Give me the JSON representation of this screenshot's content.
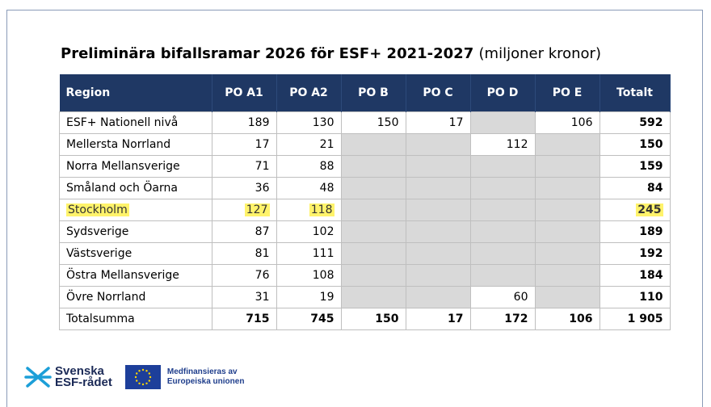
{
  "title": {
    "main": "Preliminära bifallsramar 2026 för ESF+ 2021-2027",
    "unit": "(miljoner kronor)"
  },
  "table": {
    "header": [
      "Region",
      "PO A1",
      "PO A2",
      "PO B",
      "PO C",
      "PO D",
      "PO E",
      "Totalt"
    ],
    "rows": [
      [
        "ESF+ Nationell nivå",
        189,
        130,
        150,
        17,
        null,
        106,
        592
      ],
      [
        "Mellersta Norrland",
        17,
        21,
        null,
        null,
        112,
        null,
        150
      ],
      [
        "Norra Mellansverige",
        71,
        88,
        null,
        null,
        null,
        null,
        159
      ],
      [
        "Småland och Öarna",
        36,
        48,
        null,
        null,
        null,
        null,
        84
      ],
      [
        "Stockholm",
        127,
        118,
        null,
        null,
        null,
        null,
        245
      ],
      [
        "Sydsverige",
        87,
        102,
        null,
        null,
        null,
        null,
        189
      ],
      [
        "Västsverige",
        81,
        111,
        null,
        null,
        null,
        null,
        192
      ],
      [
        "Östra Mellansverige",
        76,
        108,
        null,
        null,
        null,
        null,
        184
      ],
      [
        "Övre Norrland",
        31,
        19,
        null,
        null,
        60,
        null,
        110
      ]
    ],
    "total_row": [
      "Totalsumma",
      715,
      745,
      150,
      17,
      172,
      106,
      "1 905"
    ],
    "highlight_row": 4
  },
  "footer": {
    "logo1_line1": "Svenska",
    "logo1_line2": "ESF-rådet",
    "logo2_line1": "Medfinansieras av",
    "logo2_line2": "Europeiska unionen"
  }
}
